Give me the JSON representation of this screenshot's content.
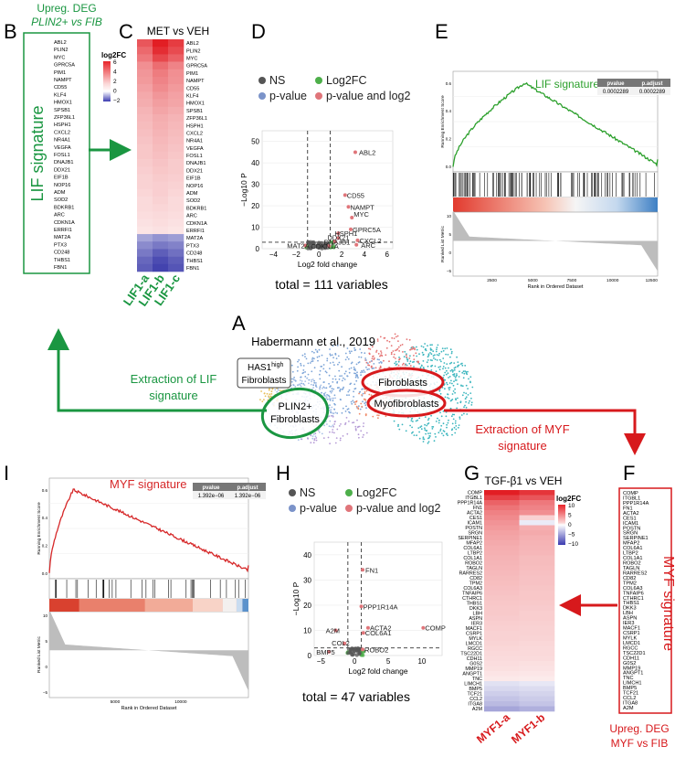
{
  "panel_letters": {
    "a": "A",
    "b": "B",
    "c": "C",
    "d": "D",
    "e": "E",
    "f": "F",
    "g": "G",
    "h": "H",
    "i": "I"
  },
  "panel_b": {
    "title_line1": "Upreg. DEG",
    "title_line2": "PLIN2+ vs FIB",
    "side_label": "LIF signature",
    "genes": [
      "ABL2",
      "PLIN2",
      "MYC",
      "GPRC5A",
      "PIM1",
      "NAMPT",
      "CD55",
      "KLF4",
      "HMOX1",
      "SPSB1",
      "ZFP36L1",
      "HSPH1",
      "CXCL2",
      "NR4A1",
      "VEGFA",
      "FOSL1",
      "DNAJB1",
      "DDX21",
      "EIF1B",
      "NOP16",
      "ADM",
      "SOD2",
      "BDKRB1",
      "ARC",
      "CDKN1A",
      "ERRFI1",
      "MAT2A",
      "PTX3",
      "CD248",
      "THBS1",
      "FBN1"
    ]
  },
  "panel_c": {
    "title": "MET vs VEH",
    "legend_title": "log2FC",
    "legend_ticks": [
      "6",
      "4",
      "2",
      "0",
      "−2"
    ],
    "columns": [
      "LIF1-a",
      "LIF1-b",
      "LIF1-c"
    ],
    "genes": [
      "ABL2",
      "PLIN2",
      "MYC",
      "GPRC5A",
      "PIM1",
      "NAMPT",
      "CD55",
      "KLF4",
      "HMOX1",
      "SPSB1",
      "ZFP36L1",
      "HSPH1",
      "CXCL2",
      "NR4A1",
      "VEGFA",
      "FOSL1",
      "DNAJB1",
      "DDX21",
      "EIF1B",
      "NOP16",
      "ADM",
      "SOD2",
      "BDKRB1",
      "ARC",
      "CDKN1A",
      "ERRFI1",
      "MAT2A",
      "PTX3",
      "CD248",
      "THBS1",
      "FBN1"
    ],
    "values": [
      [
        4.5,
        6.0,
        5.2
      ],
      [
        4.0,
        5.6,
        4.8
      ],
      [
        3.6,
        4.9,
        4.2
      ],
      [
        3.0,
        3.9,
        3.3
      ],
      [
        2.8,
        3.5,
        3.0
      ],
      [
        2.7,
        3.3,
        2.9
      ],
      [
        2.5,
        3.1,
        2.7
      ],
      [
        2.3,
        2.8,
        2.5
      ],
      [
        2.2,
        2.6,
        2.4
      ],
      [
        2.0,
        2.4,
        2.2
      ],
      [
        1.9,
        2.2,
        2.0
      ],
      [
        1.8,
        2.1,
        1.9
      ],
      [
        1.7,
        2.0,
        1.8
      ],
      [
        1.6,
        1.9,
        1.7
      ],
      [
        1.5,
        1.8,
        1.6
      ],
      [
        1.5,
        1.7,
        1.5
      ],
      [
        1.4,
        1.6,
        1.4
      ],
      [
        1.3,
        1.5,
        1.4
      ],
      [
        1.2,
        1.4,
        1.3
      ],
      [
        1.2,
        1.3,
        1.2
      ],
      [
        1.1,
        1.3,
        1.1
      ],
      [
        1.0,
        1.2,
        1.0
      ],
      [
        1.0,
        1.1,
        1.0
      ],
      [
        0.9,
        1.0,
        0.9
      ],
      [
        0.8,
        0.9,
        0.8
      ],
      [
        0.7,
        0.8,
        0.7
      ],
      [
        -1.0,
        -1.2,
        -1.1
      ],
      [
        -1.3,
        -1.5,
        -1.4
      ],
      [
        -1.5,
        -1.8,
        -1.6
      ],
      [
        -1.7,
        -2.0,
        -1.8
      ],
      [
        -1.8,
        -2.1,
        -1.9
      ]
    ]
  },
  "panel_d": {
    "legend": [
      "NS",
      "Log2FC",
      "p-value",
      "p-value and log2"
    ],
    "x_label": "Log2 fold change",
    "y_label": "−Log10 P",
    "x_ticks": [
      "−4",
      "−2",
      "0",
      "2",
      "4",
      "6"
    ],
    "y_ticks": [
      "0",
      "10",
      "20",
      "30",
      "40",
      "50"
    ],
    "total": "total = 111 variables",
    "labels": [
      "ABL2",
      "CD55",
      "NAMPT",
      "MYC",
      "GPRC5A",
      "HSPH1",
      "DDX21",
      "DNAJB1",
      "CXCL2",
      "ARC",
      "MAT2A",
      "CDKN1A"
    ]
  },
  "panel_e": {
    "title": "LIF signature",
    "table_headers": [
      "pvalue",
      "p.adjust"
    ],
    "table_values": [
      "0.0002289",
      "0.0002289"
    ],
    "y_label_top": "Running Enrichment Score",
    "y_label_bottom": "Ranked List Metric",
    "x_label": "Rank in Ordered Dataset",
    "x_ticks": [
      "2500",
      "5000",
      "7500",
      "10000",
      "12500"
    ],
    "y_ticks_top": [
      "0.0",
      "0.2",
      "0.4",
      "0.6"
    ],
    "y_ticks_bottom": [
      "10",
      "5",
      "0",
      "−5"
    ]
  },
  "panel_a": {
    "title": "Habermann et al., 2019",
    "has1_line1": "HAS1",
    "has1_sup": "high",
    "has1_line2": "Fibroblasts",
    "fibroblasts": "Fibroblasts",
    "plin2_line1": "PLIN2+",
    "plin2_line2": "Fibroblasts",
    "myofibroblasts": "Myofibroblasts",
    "extract_lif_line1": "Extraction of LIF",
    "extract_lif_line2": "signature",
    "extract_myf_line1": "Extraction of MYF",
    "extract_myf_line2": "signature"
  },
  "panel_i": {
    "title": "MYF signature",
    "table_headers": [
      "pvalue",
      "p.adjust"
    ],
    "table_values": [
      "1.392e−06",
      "1.392e−06"
    ],
    "y_label_top": "Running Enrichment Score",
    "y_label_bottom": "Ranked List Metric",
    "x_label": "Rank in Ordered Dataset",
    "x_ticks": [
      "5000",
      "10000"
    ],
    "y_ticks_top": [
      "0.0",
      "0.2",
      "0.4",
      "0.6"
    ],
    "y_ticks_bottom": [
      "10",
      "5",
      "0",
      "−5"
    ]
  },
  "panel_h": {
    "legend": [
      "NS",
      "Log2FC",
      "p-value",
      "p-value and log2"
    ],
    "x_label": "Log2 fold change",
    "y_label": "−Log10 P",
    "x_ticks": [
      "−5",
      "0",
      "5",
      "10"
    ],
    "y_ticks": [
      "0",
      "10",
      "20",
      "30",
      "40"
    ],
    "total": "total = 47 variables",
    "labels": [
      "FN1",
      "PPP1R14A",
      "ACTA2",
      "COL6A1",
      "COMP",
      "A2M",
      "COL2",
      "BMP5",
      "ROBO2"
    ]
  },
  "panel_g": {
    "title": "TGF-β1 vs VEH",
    "legend_title": "log2FC",
    "legend_ticks": [
      "10",
      "5",
      "0",
      "−5",
      "−10"
    ],
    "columns": [
      "MYF1-a",
      "MYF1-b"
    ],
    "genes": [
      "COMP",
      "ITGBL1",
      "PPP1R14A",
      "FN1",
      "ACTA2",
      "CES1",
      "ICAM1",
      "POSTN",
      "SRGN",
      "SERPINE1",
      "MFAP2",
      "COL6A1",
      "LTBP2",
      "COL1A1",
      "ROBO2",
      "TAGLN",
      "RARRES2",
      "CD82",
      "TPM2",
      "COL6A3",
      "TNFAIP6",
      "CTHRC1",
      "THBS1",
      "DKK3",
      "LBH",
      "ASPN",
      "IER3",
      "MACF1",
      "CSRP1",
      "MYLK",
      "LMCD1",
      "RGCC",
      "TSC22D1",
      "CDH11",
      "G0S2",
      "MMP19",
      "ANGPT1",
      "TNC",
      "LIMCH1",
      "BMP5",
      "TCF21",
      "CCL2",
      "ITGA8",
      "A2M"
    ],
    "values": [
      [
        10.0,
        9.0
      ],
      [
        8.5,
        7.5
      ],
      [
        7.0,
        6.0
      ],
      [
        6.2,
        5.5
      ],
      [
        5.6,
        5.0
      ],
      [
        5.2,
        2.0
      ],
      [
        4.8,
        -1.0
      ],
      [
        4.5,
        3.6
      ],
      [
        4.2,
        3.8
      ],
      [
        4.0,
        3.5
      ],
      [
        3.8,
        3.4
      ],
      [
        3.6,
        3.3
      ],
      [
        3.5,
        3.2
      ],
      [
        3.4,
        3.0
      ],
      [
        3.3,
        3.0
      ],
      [
        3.2,
        2.9
      ],
      [
        3.1,
        2.8
      ],
      [
        3.0,
        2.7
      ],
      [
        2.9,
        2.7
      ],
      [
        2.8,
        2.6
      ],
      [
        2.7,
        2.5
      ],
      [
        2.6,
        2.5
      ],
      [
        2.5,
        2.4
      ],
      [
        2.4,
        2.3
      ],
      [
        2.4,
        2.2
      ],
      [
        2.3,
        2.2
      ],
      [
        2.2,
        2.1
      ],
      [
        2.1,
        2.0
      ],
      [
        2.0,
        2.0
      ],
      [
        2.0,
        1.9
      ],
      [
        1.9,
        1.8
      ],
      [
        1.8,
        1.7
      ],
      [
        1.7,
        1.7
      ],
      [
        1.6,
        1.6
      ],
      [
        1.5,
        1.4
      ],
      [
        1.4,
        1.3
      ],
      [
        1.2,
        1.1
      ],
      [
        1.0,
        0.9
      ],
      [
        -1.5,
        -1.2
      ],
      [
        -2.0,
        -1.8
      ],
      [
        -2.5,
        -2.2
      ],
      [
        -3.0,
        -2.6
      ],
      [
        -3.5,
        -3.0
      ],
      [
        -4.5,
        -4.0
      ]
    ]
  },
  "panel_f": {
    "side_label": "MYF signature",
    "footer_line1": "Upreg. DEG",
    "footer_line2": "MYF vs FIB",
    "genes": [
      "COMP",
      "ITGBL1",
      "PPP1R14A",
      "FN1",
      "ACTA2",
      "CES1",
      "ICAM1",
      "POSTN",
      "SRGN",
      "SERPINE1",
      "MFAP2",
      "COL6A1",
      "LTBP2",
      "COL1A1",
      "ROBO2",
      "TAGLN",
      "RARRES2",
      "CD82",
      "TPM2",
      "COL6A3",
      "TNFAIP6",
      "CTHRC1",
      "THBS1",
      "DKK3",
      "LBH",
      "ASPN",
      "IER3",
      "MACF1",
      "CSRP1",
      "MYLK",
      "LMCD1",
      "RGCC",
      "TSC22D1",
      "CDH11",
      "G0S2",
      "MMP19",
      "ANGPT1",
      "TNC",
      "LIMCH1",
      "BMP5",
      "TCF21",
      "CCL2",
      "ITGA8",
      "A2M"
    ]
  },
  "colors": {
    "green": "#1a9641",
    "red": "#d7191c",
    "ns": "#555555",
    "log2fc": "#4daf4a",
    "pval": "#7b93c9",
    "both": "#e0757a"
  }
}
